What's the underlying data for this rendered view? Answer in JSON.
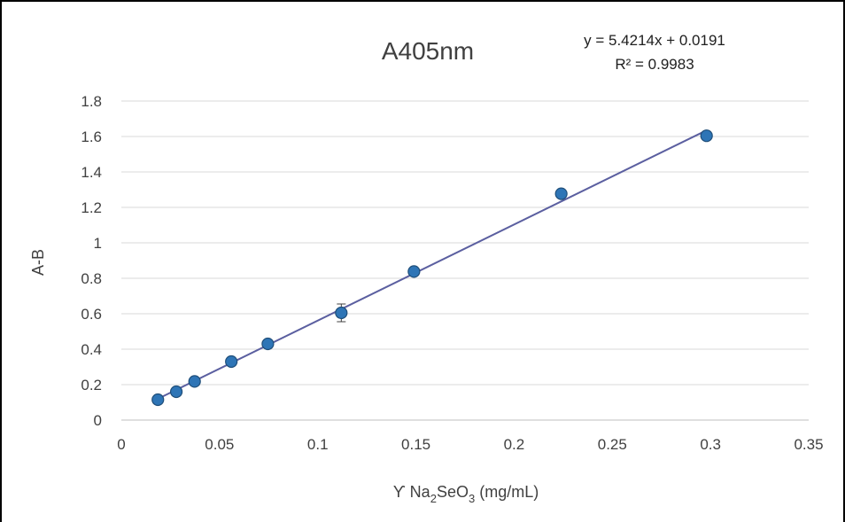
{
  "chart_data": {
    "type": "scatter",
    "title": "A405nm",
    "xlabel": {
      "prefix": "ϒ Na",
      "sub1": "2",
      "mid": "SeO",
      "sub2": "3",
      "suffix": " (mg/mL)"
    },
    "ylabel": "A-B",
    "xlim": [
      0,
      0.35
    ],
    "ylim": [
      0,
      1.8
    ],
    "x_ticks": [
      "0",
      "0.05",
      "0.1",
      "0.15",
      "0.2",
      "0.25",
      "0.3",
      "0.35"
    ],
    "y_ticks": [
      "0",
      "0.2",
      "0.4",
      "0.6",
      "0.8",
      "1",
      "1.2",
      "1.4",
      "1.6",
      "1.8"
    ],
    "grid": true,
    "points": [
      {
        "x": 0.0186,
        "y": 0.115
      },
      {
        "x": 0.028,
        "y": 0.16
      },
      {
        "x": 0.0373,
        "y": 0.218
      },
      {
        "x": 0.056,
        "y": 0.33
      },
      {
        "x": 0.0746,
        "y": 0.43
      },
      {
        "x": 0.112,
        "y": 0.605,
        "err": 0.05
      },
      {
        "x": 0.149,
        "y": 0.838
      },
      {
        "x": 0.224,
        "y": 1.277
      },
      {
        "x": 0.298,
        "y": 1.604
      }
    ],
    "trendline": {
      "slope": 5.4214,
      "intercept": 0.0191,
      "x_range": [
        0.0186,
        0.298
      ],
      "equation": "y = 5.4214x + 0.0191",
      "r_squared": "R² = 0.9983"
    },
    "colors": {
      "marker": "#2e75b6",
      "marker_edge": "#1f4e79",
      "trendline": "#5b5fa0",
      "grid": "#d9d9d9"
    }
  }
}
